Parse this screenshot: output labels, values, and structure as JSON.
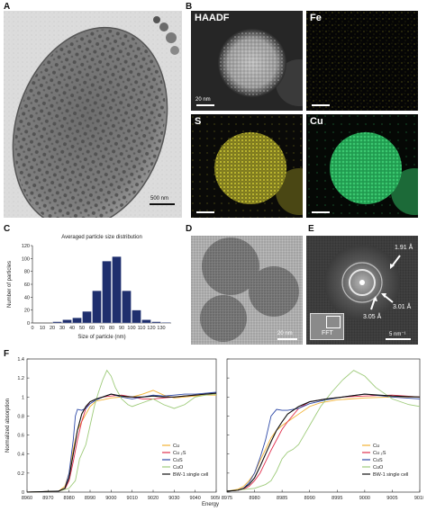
{
  "panels": {
    "A": {
      "letter": "A",
      "scale": "500 nm"
    },
    "B": {
      "letter": "B",
      "haadf": {
        "label": "HAADF",
        "scale": "20 nm"
      },
      "fe": {
        "label": "Fe",
        "color": "#d8d22a"
      },
      "s": {
        "label": "S",
        "color": "#c9c52a"
      },
      "cu": {
        "label": "Cu",
        "color": "#35c66a"
      }
    },
    "C": {
      "letter": "C"
    },
    "D": {
      "letter": "D",
      "scale": "20 nm"
    },
    "E": {
      "letter": "E",
      "annotations": [
        "1.91 Å",
        "3.01 Å",
        "3.05 Å"
      ],
      "fft_label": "FFT",
      "scale": "5 nm⁻¹"
    },
    "F": {
      "letter": "F"
    }
  },
  "chart_data": [
    {
      "type": "bar",
      "title": "Averaged particle size distribution",
      "xlabel": "Size of particle (nm)",
      "ylabel": "Number of particles",
      "categories": [
        "0",
        "10",
        "20",
        "30",
        "40",
        "50",
        "60",
        "70",
        "80",
        "90",
        "100",
        "110",
        "120",
        "130"
      ],
      "values": [
        0,
        0,
        2,
        5,
        8,
        18,
        50,
        96,
        103,
        50,
        20,
        5,
        2,
        1
      ],
      "ylim": [
        0,
        120
      ],
      "yticks": [
        0,
        20,
        40,
        60,
        80,
        100,
        120
      ],
      "color": "#1f2f6e"
    },
    {
      "type": "line",
      "xlabel": "Energy (eV)",
      "ylabel": "Normalized absorption",
      "xlim": [
        8960,
        9050
      ],
      "ylim": [
        0,
        1.4
      ],
      "xticks": [
        8960,
        8970,
        8980,
        8990,
        9000,
        9010,
        9020,
        9030,
        9040,
        9050
      ],
      "yticks": [
        0,
        0.2,
        0.4,
        0.6,
        0.8,
        1,
        1.2,
        1.4
      ],
      "series": [
        {
          "name": "Cu",
          "color": "#f2b233",
          "points": [
            [
              8960,
              0.0
            ],
            [
              8975,
              0.01
            ],
            [
              8978,
              0.06
            ],
            [
              8980,
              0.2
            ],
            [
              8982,
              0.45
            ],
            [
              8984,
              0.65
            ],
            [
              8986,
              0.74
            ],
            [
              8988,
              0.82
            ],
            [
              8990,
              0.9
            ],
            [
              8993,
              0.96
            ],
            [
              8996,
              0.97
            ],
            [
              9000,
              0.99
            ],
            [
              9005,
              1.0
            ],
            [
              9010,
              1.0
            ],
            [
              9015,
              1.03
            ],
            [
              9020,
              1.07
            ],
            [
              9025,
              1.02
            ],
            [
              9030,
              0.99
            ],
            [
              9035,
              1.0
            ],
            [
              9040,
              1.01
            ],
            [
              9045,
              1.02
            ],
            [
              9050,
              1.02
            ]
          ]
        },
        {
          "name": "Cu ₂S",
          "color": "#e0304e",
          "points": [
            [
              8960,
              0.0
            ],
            [
              8975,
              0.01
            ],
            [
              8978,
              0.03
            ],
            [
              8980,
              0.12
            ],
            [
              8982,
              0.32
            ],
            [
              8984,
              0.55
            ],
            [
              8986,
              0.74
            ],
            [
              8988,
              0.88
            ],
            [
              8990,
              0.95
            ],
            [
              8993,
              0.98
            ],
            [
              8996,
              1.0
            ],
            [
              9000,
              1.01
            ],
            [
              9005,
              1.02
            ],
            [
              9010,
              1.0
            ],
            [
              9015,
              0.98
            ],
            [
              9020,
              0.98
            ],
            [
              9025,
              0.99
            ],
            [
              9030,
              1.0
            ],
            [
              9035,
              1.01
            ],
            [
              9040,
              1.02
            ],
            [
              9045,
              1.03
            ],
            [
              9050,
              1.03
            ]
          ]
        },
        {
          "name": "CuS",
          "color": "#2f4aa8",
          "points": [
            [
              8960,
              0.0
            ],
            [
              8975,
              0.01
            ],
            [
              8978,
              0.04
            ],
            [
              8980,
              0.2
            ],
            [
              8982,
              0.55
            ],
            [
              8983,
              0.8
            ],
            [
              8984,
              0.87
            ],
            [
              8986,
              0.86
            ],
            [
              8988,
              0.88
            ],
            [
              8990,
              0.93
            ],
            [
              8993,
              0.97
            ],
            [
              8996,
              1.0
            ],
            [
              9000,
              1.03
            ],
            [
              9005,
              1.0
            ],
            [
              9010,
              0.98
            ],
            [
              9015,
              1.0
            ],
            [
              9020,
              1.02
            ],
            [
              9025,
              1.01
            ],
            [
              9030,
              1.02
            ],
            [
              9035,
              1.03
            ],
            [
              9040,
              1.03
            ],
            [
              9045,
              1.04
            ],
            [
              9050,
              1.05
            ]
          ]
        },
        {
          "name": "CuO",
          "color": "#9ecb7a",
          "points": [
            [
              8960,
              0.0
            ],
            [
              8975,
              0.01
            ],
            [
              8980,
              0.04
            ],
            [
              8983,
              0.12
            ],
            [
              8985,
              0.35
            ],
            [
              8987,
              0.45
            ],
            [
              8988,
              0.5
            ],
            [
              8990,
              0.7
            ],
            [
              8992,
              0.9
            ],
            [
              8994,
              1.05
            ],
            [
              8996,
              1.18
            ],
            [
              8998,
              1.28
            ],
            [
              9000,
              1.22
            ],
            [
              9002,
              1.1
            ],
            [
              9005,
              0.98
            ],
            [
              9008,
              0.92
            ],
            [
              9010,
              0.9
            ],
            [
              9015,
              0.94
            ],
            [
              9020,
              0.98
            ],
            [
              9025,
              0.92
            ],
            [
              9030,
              0.88
            ],
            [
              9035,
              0.92
            ],
            [
              9040,
              1.0
            ],
            [
              9045,
              1.02
            ],
            [
              9050,
              1.03
            ]
          ]
        },
        {
          "name": "BW-1 single cell",
          "color": "#111111",
          "points": [
            [
              8960,
              0.0
            ],
            [
              8975,
              0.01
            ],
            [
              8978,
              0.04
            ],
            [
              8980,
              0.15
            ],
            [
              8982,
              0.4
            ],
            [
              8984,
              0.65
            ],
            [
              8986,
              0.82
            ],
            [
              8988,
              0.9
            ],
            [
              8990,
              0.95
            ],
            [
              8993,
              0.98
            ],
            [
              8996,
              1.0
            ],
            [
              9000,
              1.03
            ],
            [
              9005,
              1.01
            ],
            [
              9010,
              1.0
            ],
            [
              9015,
              1.0
            ],
            [
              9020,
              1.01
            ],
            [
              9025,
              1.0
            ],
            [
              9030,
              1.0
            ],
            [
              9035,
              1.01
            ],
            [
              9040,
              1.02
            ],
            [
              9045,
              1.03
            ],
            [
              9050,
              1.04
            ]
          ]
        }
      ]
    },
    {
      "type": "line",
      "xlabel": "",
      "ylabel": "",
      "xlim": [
        8975,
        9010
      ],
      "ylim": [
        0,
        1.4
      ],
      "xticks": [
        8975,
        8980,
        8985,
        8990,
        8995,
        9000,
        9005,
        9010
      ],
      "yticks": [
        0,
        0.2,
        0.4,
        0.6,
        0.8,
        1,
        1.2,
        1.4
      ],
      "series": [
        {
          "name": "Cu",
          "color": "#f2b233",
          "points": [
            [
              8975,
              0.01
            ],
            [
              8977,
              0.03
            ],
            [
              8978,
              0.06
            ],
            [
              8979,
              0.12
            ],
            [
              8980,
              0.2
            ],
            [
              8981,
              0.33
            ],
            [
              8982,
              0.45
            ],
            [
              8983,
              0.57
            ],
            [
              8984,
              0.65
            ],
            [
              8985,
              0.7
            ],
            [
              8986,
              0.74
            ],
            [
              8987,
              0.78
            ],
            [
              8988,
              0.82
            ],
            [
              8990,
              0.9
            ],
            [
              8992,
              0.94
            ],
            [
              8995,
              0.97
            ],
            [
              9000,
              0.99
            ],
            [
              9005,
              1.0
            ],
            [
              9010,
              1.0
            ]
          ]
        },
        {
          "name": "Cu ₂S",
          "color": "#e0304e",
          "points": [
            [
              8975,
              0.01
            ],
            [
              8977,
              0.02
            ],
            [
              8978,
              0.03
            ],
            [
              8979,
              0.06
            ],
            [
              8980,
              0.12
            ],
            [
              8981,
              0.2
            ],
            [
              8982,
              0.32
            ],
            [
              8983,
              0.44
            ],
            [
              8984,
              0.55
            ],
            [
              8985,
              0.66
            ],
            [
              8986,
              0.74
            ],
            [
              8988,
              0.88
            ],
            [
              8990,
              0.95
            ],
            [
              8993,
              0.98
            ],
            [
              8996,
              1.0
            ],
            [
              9000,
              1.01
            ],
            [
              9005,
              1.02
            ],
            [
              9010,
              1.0
            ]
          ]
        },
        {
          "name": "CuS",
          "color": "#2f4aa8",
          "points": [
            [
              8975,
              0.01
            ],
            [
              8977,
              0.02
            ],
            [
              8978,
              0.04
            ],
            [
              8979,
              0.1
            ],
            [
              8980,
              0.2
            ],
            [
              8981,
              0.36
            ],
            [
              8982,
              0.55
            ],
            [
              8983,
              0.8
            ],
            [
              8984,
              0.87
            ],
            [
              8985,
              0.86
            ],
            [
              8986,
              0.86
            ],
            [
              8988,
              0.88
            ],
            [
              8990,
              0.93
            ],
            [
              8993,
              0.97
            ],
            [
              8996,
              1.0
            ],
            [
              9000,
              1.03
            ],
            [
              9005,
              1.0
            ],
            [
              9010,
              0.98
            ]
          ]
        },
        {
          "name": "CuO",
          "color": "#9ecb7a",
          "points": [
            [
              8975,
              0.01
            ],
            [
              8980,
              0.04
            ],
            [
              8982,
              0.08
            ],
            [
              8983,
              0.12
            ],
            [
              8984,
              0.22
            ],
            [
              8985,
              0.35
            ],
            [
              8986,
              0.42
            ],
            [
              8987,
              0.45
            ],
            [
              8988,
              0.5
            ],
            [
              8989,
              0.6
            ],
            [
              8990,
              0.7
            ],
            [
              8992,
              0.9
            ],
            [
              8994,
              1.05
            ],
            [
              8996,
              1.18
            ],
            [
              8998,
              1.28
            ],
            [
              9000,
              1.22
            ],
            [
              9002,
              1.1
            ],
            [
              9005,
              0.98
            ],
            [
              9008,
              0.92
            ],
            [
              9010,
              0.9
            ]
          ]
        },
        {
          "name": "BW-1 single cell",
          "color": "#111111",
          "points": [
            [
              8975,
              0.01
            ],
            [
              8977,
              0.02
            ],
            [
              8978,
              0.04
            ],
            [
              8979,
              0.08
            ],
            [
              8980,
              0.15
            ],
            [
              8981,
              0.27
            ],
            [
              8982,
              0.4
            ],
            [
              8983,
              0.53
            ],
            [
              8984,
              0.65
            ],
            [
              8985,
              0.74
            ],
            [
              8986,
              0.82
            ],
            [
              8988,
              0.9
            ],
            [
              8990,
              0.95
            ],
            [
              8993,
              0.98
            ],
            [
              8996,
              1.0
            ],
            [
              9000,
              1.03
            ],
            [
              9005,
              1.01
            ],
            [
              9010,
              1.0
            ]
          ]
        }
      ]
    }
  ]
}
